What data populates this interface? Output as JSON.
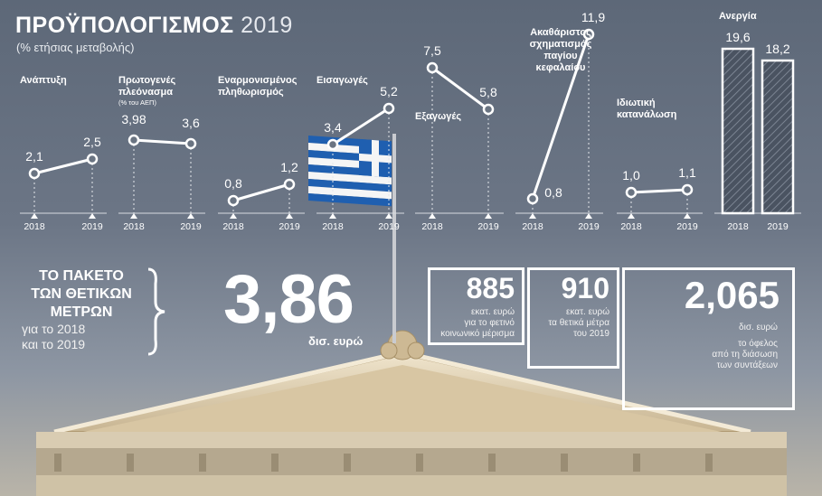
{
  "header": {
    "title": "ΠΡΟΫΠΟΛΟΓΙΣΜΟΣ",
    "year": "2019",
    "subtitle": "(% ετήσιας μεταβολής)"
  },
  "chart_data": [
    {
      "type": "line",
      "label": "Ανάπτυξη",
      "x": [
        "2018",
        "2019"
      ],
      "values": [
        2.1,
        2.5
      ],
      "value_labels": [
        "2,1",
        "2,5"
      ]
    },
    {
      "type": "line",
      "label": "Πρωτογενές πλεόνασμα",
      "note": "(% του ΑΕΠ)",
      "x": [
        "2018",
        "2019"
      ],
      "values": [
        3.98,
        3.6
      ],
      "value_labels": [
        "3,98",
        "3,6"
      ]
    },
    {
      "type": "line",
      "label": "Εναρμονισμένος πληθωρισμός",
      "x": [
        "2018",
        "2019"
      ],
      "values": [
        0.8,
        1.2
      ],
      "value_labels": [
        "0,8",
        "1,2"
      ]
    },
    {
      "type": "line",
      "label": "Εισαγωγές",
      "x": [
        "2018",
        "2019"
      ],
      "values": [
        3.4,
        5.2
      ],
      "value_labels": [
        "3,4",
        "5,2"
      ]
    },
    {
      "type": "line",
      "label": "Εξαγωγές",
      "x": [
        "2018",
        "2019"
      ],
      "values": [
        7.5,
        5.8
      ],
      "value_labels": [
        "7,5",
        "5,8"
      ]
    },
    {
      "type": "line",
      "label": "Ακαθάριστος σχηματισμός παγίου κεφαλαίου",
      "x": [
        "2018",
        "2019"
      ],
      "values": [
        0.8,
        11.9
      ],
      "value_labels": [
        "0,8",
        "11,9"
      ]
    },
    {
      "type": "line",
      "label": "Ιδιωτική κατανάλωση",
      "x": [
        "2018",
        "2019"
      ],
      "values": [
        1.0,
        1.1
      ],
      "value_labels": [
        "1,0",
        "1,1"
      ]
    },
    {
      "type": "bar",
      "label": "Ανεργία",
      "categories": [
        "2018",
        "2019"
      ],
      "values": [
        19.6,
        18.2
      ],
      "value_labels": [
        "19,6",
        "18,2"
      ]
    }
  ],
  "package": {
    "title_lines": [
      "ΤΟ ΠΑΚΕΤΟ",
      "ΤΩΝ ΘΕΤΙΚΩΝ",
      "ΜΕΤΡΩΝ"
    ],
    "subtitle_lines": [
      "για το 2018",
      "και το 2019"
    ],
    "total": "3,86",
    "total_unit": "δισ. ευρώ"
  },
  "boxes": [
    {
      "value": "885",
      "lines": [
        "εκατ. ευρώ",
        "για το φετινό",
        "κοινωνικό μέρισμα"
      ]
    },
    {
      "value": "910",
      "lines": [
        "εκατ. ευρώ",
        "τα θετικά μέτρα",
        "του 2019"
      ]
    },
    {
      "value": "2,065",
      "lines": [
        "δισ. ευρώ",
        "το όφελος",
        "από τη διάσωση",
        "των συντάξεων"
      ]
    }
  ],
  "colors": {
    "background": "#66717f",
    "line": "#ffffff",
    "flag_blue": "#1f5fb0",
    "stone": "#e5d7bc"
  }
}
